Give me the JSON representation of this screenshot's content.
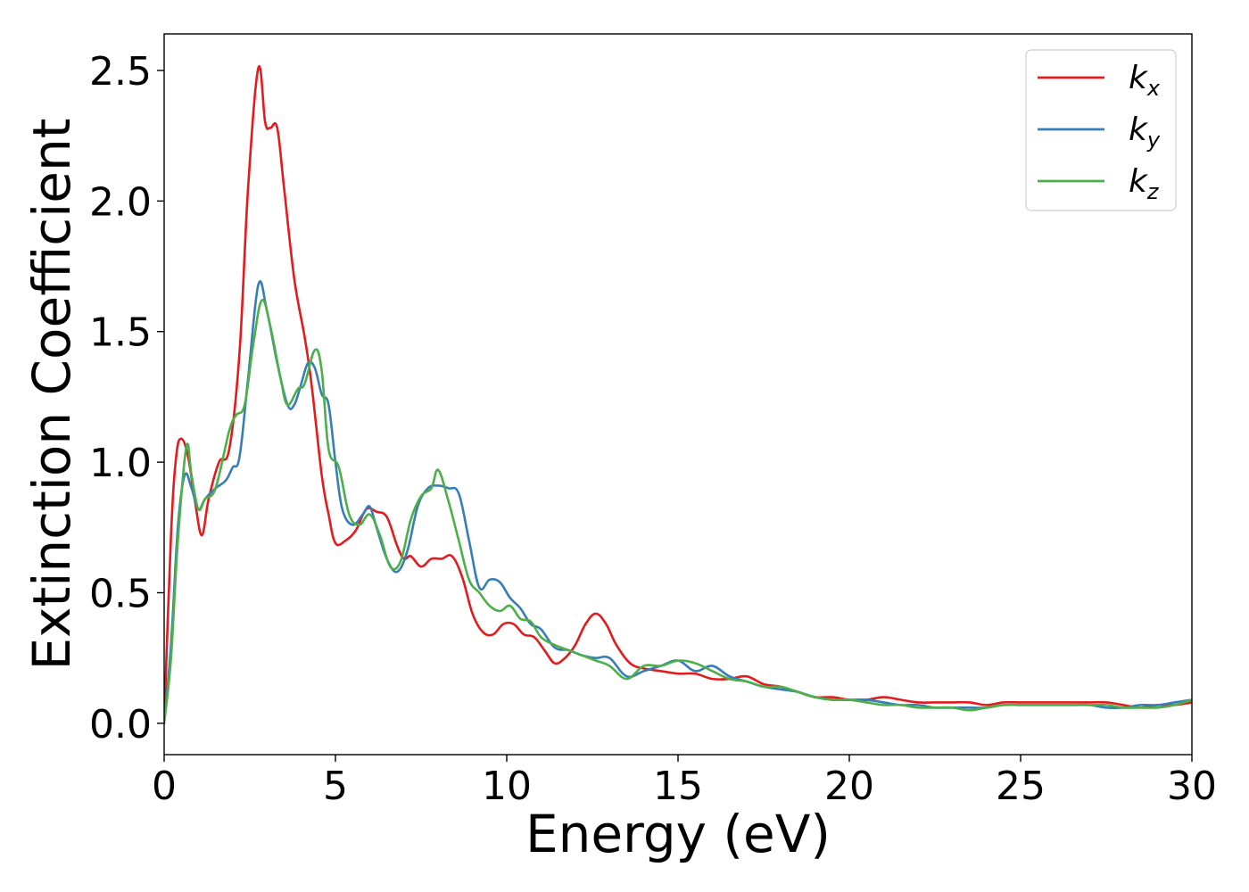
{
  "chart_data": {
    "type": "line",
    "title": "",
    "xlabel": "Energy (eV)",
    "ylabel": "Extinction Coefficient",
    "xlim": [
      0,
      30
    ],
    "ylim": [
      -0.12,
      2.64
    ],
    "grid": false,
    "legend_position": "top-right",
    "x_ticks": [
      "0",
      "5",
      "10",
      "15",
      "20",
      "25",
      "30"
    ],
    "y_ticks": [
      "0.0",
      "0.5",
      "1.0",
      "1.5",
      "2.0",
      "2.5"
    ],
    "series": [
      {
        "name": "k_x",
        "label_base": "k",
        "label_sub": "x",
        "color": "#e41a1c",
        "x": [
          0,
          0.2,
          0.35,
          0.5,
          0.7,
          0.9,
          1.1,
          1.3,
          1.6,
          1.9,
          2.2,
          2.45,
          2.75,
          2.95,
          3.1,
          3.3,
          3.5,
          3.8,
          4.1,
          4.3,
          4.6,
          4.8,
          5.0,
          5.3,
          5.6,
          5.9,
          6.2,
          6.5,
          6.8,
          7.0,
          7.2,
          7.5,
          7.8,
          8.1,
          8.4,
          8.7,
          9.0,
          9.3,
          9.6,
          9.9,
          10.2,
          10.5,
          10.8,
          11.1,
          11.4,
          11.7,
          12.0,
          12.3,
          12.6,
          12.9,
          13.2,
          13.6,
          14.0,
          14.5,
          15.0,
          15.5,
          16.0,
          16.5,
          17.0,
          17.5,
          18.0,
          18.5,
          19.0,
          19.5,
          20.0,
          20.5,
          21.0,
          21.5,
          22.0,
          22.5,
          23.0,
          23.5,
          24.0,
          24.5,
          25.0,
          25.5,
          26.0,
          26.5,
          27.0,
          27.5,
          28.0,
          28.5,
          29.0,
          29.5,
          30.0
        ],
        "y": [
          0.0,
          0.72,
          1.02,
          1.09,
          1.02,
          0.85,
          0.72,
          0.86,
          1.0,
          1.05,
          1.42,
          2.05,
          2.51,
          2.3,
          2.28,
          2.28,
          2.05,
          1.7,
          1.48,
          1.3,
          0.95,
          0.8,
          0.69,
          0.7,
          0.74,
          0.82,
          0.81,
          0.79,
          0.68,
          0.63,
          0.64,
          0.6,
          0.63,
          0.63,
          0.64,
          0.56,
          0.42,
          0.35,
          0.34,
          0.38,
          0.38,
          0.34,
          0.33,
          0.28,
          0.23,
          0.25,
          0.3,
          0.38,
          0.42,
          0.38,
          0.3,
          0.23,
          0.21,
          0.2,
          0.19,
          0.19,
          0.17,
          0.17,
          0.18,
          0.15,
          0.14,
          0.12,
          0.1,
          0.1,
          0.09,
          0.09,
          0.1,
          0.09,
          0.08,
          0.08,
          0.08,
          0.08,
          0.07,
          0.08,
          0.08,
          0.08,
          0.08,
          0.08,
          0.08,
          0.08,
          0.07,
          0.06,
          0.07,
          0.07,
          0.08
        ]
      },
      {
        "name": "k_y",
        "label_base": "k",
        "label_sub": "y",
        "color": "#377eb8",
        "x": [
          0,
          0.2,
          0.4,
          0.6,
          0.8,
          1.0,
          1.2,
          1.5,
          1.8,
          2.0,
          2.2,
          2.45,
          2.75,
          3.0,
          3.3,
          3.6,
          3.8,
          4.0,
          4.2,
          4.4,
          4.6,
          4.8,
          5.0,
          5.2,
          5.5,
          5.8,
          6.0,
          6.2,
          6.5,
          6.8,
          7.1,
          7.4,
          7.7,
          8.0,
          8.3,
          8.6,
          8.9,
          9.2,
          9.5,
          9.8,
          10.1,
          10.4,
          10.7,
          11.0,
          11.4,
          11.8,
          12.2,
          12.6,
          13.0,
          13.5,
          14.0,
          14.5,
          15.0,
          15.5,
          16.0,
          16.5,
          17.0,
          17.5,
          18.0,
          18.5,
          19.0,
          19.5,
          20.0,
          20.5,
          21.0,
          21.5,
          22.0,
          22.5,
          23.0,
          23.5,
          24.0,
          24.5,
          25.0,
          25.5,
          26.0,
          26.5,
          27.0,
          27.5,
          28.0,
          28.5,
          29.0,
          29.5,
          30.0
        ],
        "y": [
          0.0,
          0.3,
          0.75,
          0.95,
          0.9,
          0.82,
          0.86,
          0.9,
          0.93,
          0.98,
          1.02,
          1.32,
          1.68,
          1.58,
          1.38,
          1.22,
          1.22,
          1.3,
          1.38,
          1.36,
          1.26,
          1.22,
          1.0,
          0.82,
          0.76,
          0.8,
          0.83,
          0.75,
          0.63,
          0.58,
          0.66,
          0.83,
          0.9,
          0.91,
          0.9,
          0.88,
          0.7,
          0.52,
          0.55,
          0.54,
          0.48,
          0.44,
          0.38,
          0.36,
          0.29,
          0.28,
          0.26,
          0.25,
          0.25,
          0.18,
          0.2,
          0.22,
          0.24,
          0.2,
          0.22,
          0.18,
          0.16,
          0.14,
          0.13,
          0.12,
          0.1,
          0.09,
          0.09,
          0.09,
          0.08,
          0.07,
          0.07,
          0.06,
          0.06,
          0.06,
          0.06,
          0.07,
          0.07,
          0.07,
          0.07,
          0.07,
          0.07,
          0.06,
          0.06,
          0.07,
          0.07,
          0.08,
          0.09
        ]
      },
      {
        "name": "k_z",
        "label_base": "k",
        "label_sub": "z",
        "color": "#4daf4a",
        "x": [
          0,
          0.2,
          0.4,
          0.65,
          0.8,
          1.0,
          1.2,
          1.5,
          1.9,
          2.1,
          2.35,
          2.6,
          2.85,
          3.1,
          3.4,
          3.6,
          3.9,
          4.1,
          4.4,
          4.6,
          4.8,
          5.1,
          5.4,
          5.7,
          6.0,
          6.3,
          6.6,
          6.9,
          7.2,
          7.5,
          7.8,
          8.0,
          8.3,
          8.6,
          8.9,
          9.2,
          9.5,
          9.8,
          10.1,
          10.4,
          10.7,
          11.0,
          11.4,
          11.8,
          12.2,
          12.6,
          13.0,
          13.5,
          14.0,
          14.5,
          15.0,
          15.5,
          16.0,
          16.5,
          17.0,
          17.5,
          18.0,
          18.5,
          19.0,
          19.5,
          20.0,
          20.5,
          21.0,
          21.5,
          22.0,
          22.5,
          23.0,
          23.5,
          24.0,
          24.5,
          25.0,
          25.5,
          26.0,
          26.5,
          27.0,
          27.5,
          28.0,
          28.5,
          29.0,
          29.5,
          30.0
        ],
        "y": [
          0.0,
          0.25,
          0.7,
          1.06,
          0.95,
          0.82,
          0.86,
          0.9,
          1.12,
          1.18,
          1.22,
          1.45,
          1.62,
          1.52,
          1.32,
          1.22,
          1.28,
          1.3,
          1.43,
          1.35,
          1.05,
          0.98,
          0.8,
          0.76,
          0.8,
          0.72,
          0.6,
          0.62,
          0.78,
          0.87,
          0.9,
          0.97,
          0.85,
          0.7,
          0.55,
          0.5,
          0.45,
          0.43,
          0.45,
          0.4,
          0.39,
          0.33,
          0.3,
          0.28,
          0.26,
          0.24,
          0.22,
          0.17,
          0.22,
          0.22,
          0.24,
          0.23,
          0.2,
          0.17,
          0.16,
          0.14,
          0.14,
          0.12,
          0.1,
          0.09,
          0.09,
          0.08,
          0.07,
          0.07,
          0.06,
          0.06,
          0.06,
          0.05,
          0.06,
          0.07,
          0.07,
          0.07,
          0.07,
          0.07,
          0.07,
          0.07,
          0.06,
          0.06,
          0.06,
          0.07,
          0.09
        ]
      }
    ]
  }
}
